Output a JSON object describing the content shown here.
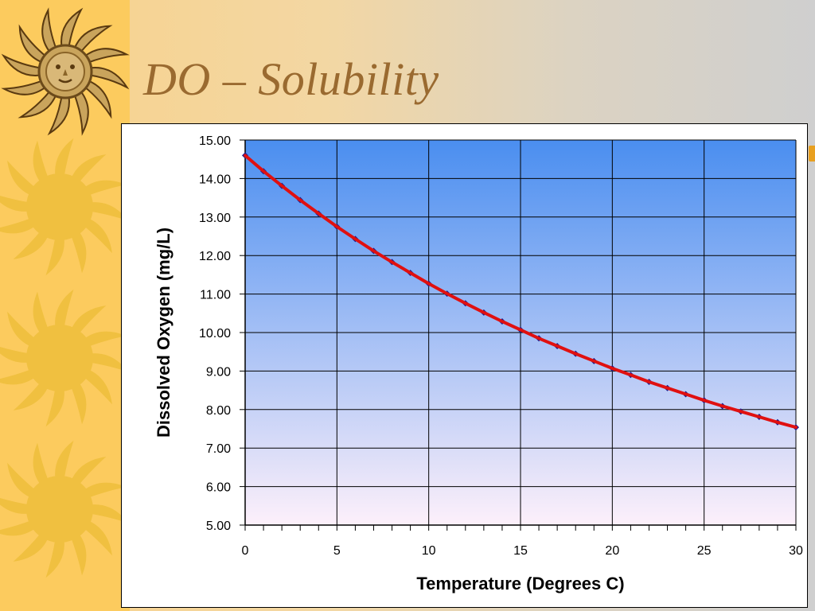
{
  "slide": {
    "title": "DO – Solubility"
  },
  "colors": {
    "sidebar": "#fccb5e",
    "sun": "#f0c040",
    "title": "#9a6a30",
    "plot_top": "#4a8ef0",
    "plot_bottom": "#fdf0fa",
    "line": "#e01010",
    "marker": "#1a1a8c"
  },
  "icons": [
    "sun-face-icon",
    "sun-icon",
    "sun-icon",
    "sun-icon"
  ],
  "chart_data": {
    "type": "line",
    "xlabel": "Temperature (Degrees C)",
    "ylabel": "Dissolved Oxygen (mg/L)",
    "xlim": [
      0,
      30
    ],
    "ylim": [
      5,
      15
    ],
    "x_ticks": [
      "0",
      "5",
      "10",
      "15",
      "20",
      "25",
      "30"
    ],
    "y_ticks": [
      "5.00",
      "6.00",
      "7.00",
      "8.00",
      "9.00",
      "10.00",
      "11.00",
      "12.00",
      "13.00",
      "14.00",
      "15.00"
    ],
    "grid": true,
    "legend": "none",
    "series": [
      {
        "x": [
          0,
          1,
          2,
          3,
          4,
          5,
          6,
          7,
          8,
          9,
          10,
          11,
          12,
          13,
          14,
          15,
          16,
          17,
          18,
          19,
          20,
          21,
          22,
          23,
          24,
          25,
          26,
          27,
          28,
          29,
          30
        ],
        "values": [
          14.6,
          14.19,
          13.81,
          13.44,
          13.09,
          12.75,
          12.43,
          12.12,
          11.83,
          11.55,
          11.27,
          11.01,
          10.76,
          10.52,
          10.29,
          10.07,
          9.85,
          9.65,
          9.45,
          9.26,
          9.07,
          8.9,
          8.72,
          8.56,
          8.4,
          8.24,
          8.09,
          7.95,
          7.81,
          7.67,
          7.54
        ]
      }
    ]
  }
}
